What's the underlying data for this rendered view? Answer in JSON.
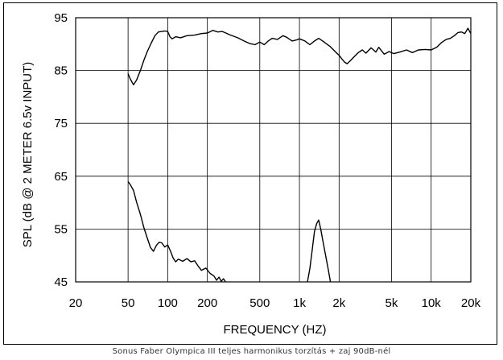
{
  "caption": "Sonus Faber Olympica III teljes harmonikus torzítás + zaj 90dB-nél",
  "chart_data": {
    "type": "line",
    "title": "",
    "xlabel": "FREQUENCY  (HZ)",
    "ylabel": "SPL (dB @ 2 METER 6.5v  INPUT)",
    "xscale": "log",
    "xlim": [
      20,
      20000
    ],
    "ylim": [
      45,
      95
    ],
    "grid": true,
    "x_ticks": [
      {
        "value": 20,
        "label": "20"
      },
      {
        "value": 50,
        "label": "50"
      },
      {
        "value": 100,
        "label": "100"
      },
      {
        "value": 200,
        "label": "200"
      },
      {
        "value": 500,
        "label": "500"
      },
      {
        "value": 1000,
        "label": "1k"
      },
      {
        "value": 2000,
        "label": "2k"
      },
      {
        "value": 5000,
        "label": "5k"
      },
      {
        "value": 10000,
        "label": "10k"
      },
      {
        "value": 20000,
        "label": "20k"
      }
    ],
    "x_gridlines": [
      50,
      100,
      200,
      500,
      1000,
      2000,
      5000,
      10000
    ],
    "y_ticks": [
      45,
      55,
      65,
      75,
      85,
      95
    ],
    "y_gridlines": [
      55,
      65,
      75,
      85
    ],
    "series": [
      {
        "values": [
          [
            50,
            84.4
          ],
          [
            52,
            83.4
          ],
          [
            55,
            82.3
          ],
          [
            58,
            83.2
          ],
          [
            62,
            85.0
          ],
          [
            66,
            87.0
          ],
          [
            70,
            88.6
          ],
          [
            75,
            90.2
          ],
          [
            80,
            91.6
          ],
          [
            85,
            92.3
          ],
          [
            90,
            92.4
          ],
          [
            95,
            92.5
          ],
          [
            100,
            92.4
          ],
          [
            104,
            91.4
          ],
          [
            108,
            91.0
          ],
          [
            115,
            91.4
          ],
          [
            125,
            91.2
          ],
          [
            140,
            91.6
          ],
          [
            160,
            91.7
          ],
          [
            180,
            92.0
          ],
          [
            200,
            92.1
          ],
          [
            220,
            92.6
          ],
          [
            240,
            92.3
          ],
          [
            260,
            92.4
          ],
          [
            300,
            91.7
          ],
          [
            340,
            91.2
          ],
          [
            380,
            90.6
          ],
          [
            420,
            90.1
          ],
          [
            460,
            89.9
          ],
          [
            500,
            90.4
          ],
          [
            540,
            89.9
          ],
          [
            580,
            90.6
          ],
          [
            620,
            91.1
          ],
          [
            680,
            90.9
          ],
          [
            750,
            91.6
          ],
          [
            800,
            91.3
          ],
          [
            880,
            90.6
          ],
          [
            950,
            90.8
          ],
          [
            1000,
            91.0
          ],
          [
            1100,
            90.6
          ],
          [
            1200,
            89.9
          ],
          [
            1300,
            90.6
          ],
          [
            1400,
            91.1
          ],
          [
            1500,
            90.6
          ],
          [
            1700,
            89.6
          ],
          [
            1900,
            88.4
          ],
          [
            2000,
            87.9
          ],
          [
            2100,
            87.2
          ],
          [
            2200,
            86.6
          ],
          [
            2300,
            86.3
          ],
          [
            2400,
            86.7
          ],
          [
            2600,
            87.6
          ],
          [
            2800,
            88.4
          ],
          [
            3000,
            88.9
          ],
          [
            3200,
            88.3
          ],
          [
            3500,
            89.3
          ],
          [
            3800,
            88.5
          ],
          [
            4000,
            89.4
          ],
          [
            4400,
            88.1
          ],
          [
            4800,
            88.6
          ],
          [
            5200,
            88.2
          ],
          [
            5800,
            88.5
          ],
          [
            6500,
            88.9
          ],
          [
            7200,
            88.4
          ],
          [
            8000,
            88.9
          ],
          [
            9000,
            89.0
          ],
          [
            10000,
            88.9
          ],
          [
            11000,
            89.4
          ],
          [
            12000,
            90.3
          ],
          [
            13000,
            90.9
          ],
          [
            14000,
            91.1
          ],
          [
            15000,
            91.6
          ],
          [
            16000,
            92.2
          ],
          [
            17000,
            92.3
          ],
          [
            18000,
            92.0
          ],
          [
            19000,
            93.0
          ],
          [
            20000,
            92.0
          ]
        ]
      },
      {
        "values": [
          [
            50,
            64.0
          ],
          [
            52,
            63.4
          ],
          [
            55,
            62.3
          ],
          [
            58,
            60.1
          ],
          [
            62,
            57.8
          ],
          [
            66,
            55.2
          ],
          [
            70,
            53.3
          ],
          [
            74,
            51.5
          ],
          [
            78,
            50.8
          ],
          [
            82,
            51.9
          ],
          [
            86,
            52.5
          ],
          [
            90,
            52.4
          ],
          [
            95,
            51.6
          ],
          [
            100,
            52.0
          ],
          [
            105,
            50.8
          ],
          [
            110,
            49.5
          ],
          [
            115,
            48.8
          ],
          [
            120,
            49.3
          ],
          [
            130,
            48.9
          ],
          [
            140,
            49.4
          ],
          [
            150,
            48.8
          ],
          [
            160,
            49.0
          ],
          [
            170,
            48.0
          ],
          [
            180,
            47.2
          ],
          [
            195,
            47.6
          ],
          [
            210,
            46.6
          ],
          [
            225,
            46.1
          ],
          [
            235,
            45.3
          ],
          [
            245,
            45.9
          ],
          [
            255,
            45.1
          ],
          [
            265,
            45.6
          ],
          [
            275,
            45.0
          ]
        ]
      },
      {
        "values": [
          [
            1150,
            45.0
          ],
          [
            1200,
            47.5
          ],
          [
            1250,
            51.0
          ],
          [
            1300,
            54.5
          ],
          [
            1350,
            56.0
          ],
          [
            1400,
            56.7
          ],
          [
            1450,
            55.0
          ],
          [
            1500,
            53.0
          ],
          [
            1580,
            50.0
          ],
          [
            1650,
            47.5
          ],
          [
            1720,
            45.0
          ]
        ]
      }
    ]
  }
}
